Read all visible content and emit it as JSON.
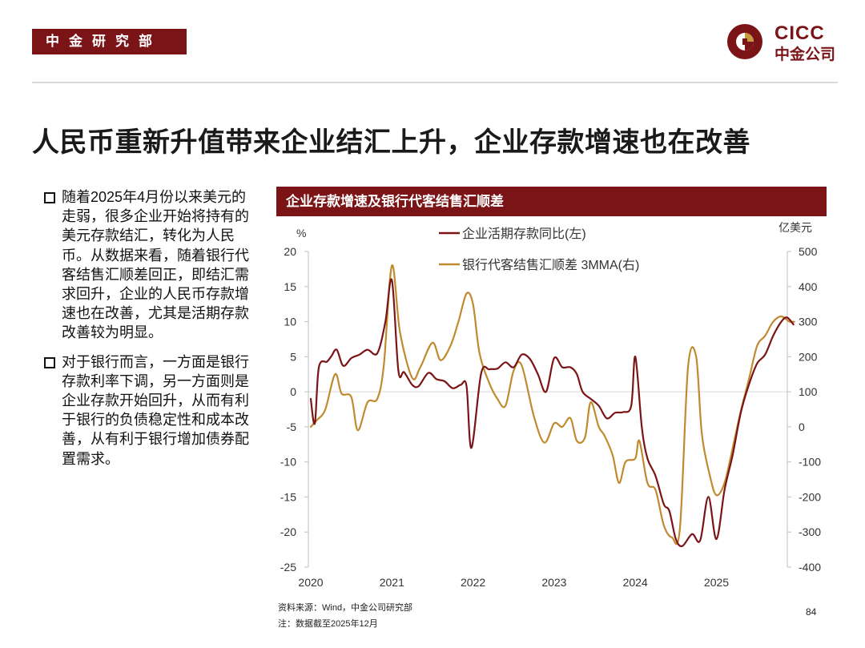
{
  "header": {
    "dept_tag": "中金研究部",
    "logo_en": "CICC",
    "logo_cn": "中金公司"
  },
  "headline": "人民币重新升值带来企业结汇上升，企业存款增速也在改善",
  "bullets": [
    "随着2025年4月份以来美元的走弱，很多企业开始将持有的美元存款结汇，转化为人民币。从数据来看，随着银行代客结售汇顺差回正，即结汇需求回升，企业的人民币存款增速也在改善，尤其是活期存款改善较为明显。",
    "对于银行而言，一方面是银行存款利率下调，另一方面则是企业存款开始回升，从而有利于银行的负债稳定性和成本改善，从有利于银行增加债券配置需求。"
  ],
  "footer": {
    "source": "资料来源：Wind，中金公司研究部",
    "note": "注：数据截至2025年12月",
    "page": "84"
  },
  "colors": {
    "brand": "#7b1416",
    "series_left": "#7b1416",
    "series_right": "#c08a2e",
    "logo_gold": "#c89a3e"
  },
  "chart_data": {
    "type": "line",
    "title": "企业存款增速及银行代客结售汇顺差",
    "x_ticks": [
      "2020",
      "2021",
      "2022",
      "2023",
      "2024",
      "2025"
    ],
    "y_left": {
      "unit": "%",
      "range": [
        -25,
        20
      ],
      "ticks": [
        "20",
        "15",
        "10",
        "5",
        "0",
        "-5",
        "-10",
        "-15",
        "-20",
        "-25"
      ]
    },
    "y_right": {
      "unit": "亿美元",
      "range": [
        -400,
        500
      ],
      "ticks": [
        "500",
        "400",
        "300",
        "200",
        "100",
        "0",
        "-100",
        "-200",
        "-300",
        "-400"
      ]
    },
    "series": [
      {
        "name": "企业活期存款同比(左)",
        "axis": "left",
        "points": [
          [
            2020.0,
            -1.0
          ],
          [
            2020.05,
            -4.5
          ],
          [
            2020.1,
            3.5
          ],
          [
            2020.2,
            4.3
          ],
          [
            2020.25,
            5.0
          ],
          [
            2020.32,
            6.0
          ],
          [
            2020.4,
            3.7
          ],
          [
            2020.5,
            4.8
          ],
          [
            2020.6,
            5.3
          ],
          [
            2020.7,
            6.0
          ],
          [
            2020.82,
            5.5
          ],
          [
            2020.92,
            10.0
          ],
          [
            2021.0,
            15.9
          ],
          [
            2021.08,
            3.0
          ],
          [
            2021.15,
            2.8
          ],
          [
            2021.25,
            1.0
          ],
          [
            2021.33,
            0.8
          ],
          [
            2021.45,
            2.7
          ],
          [
            2021.55,
            1.8
          ],
          [
            2021.65,
            1.5
          ],
          [
            2021.75,
            0.5
          ],
          [
            2021.85,
            1.0
          ],
          [
            2021.92,
            0.8
          ],
          [
            2021.98,
            -8.0
          ],
          [
            2022.1,
            2.6
          ],
          [
            2022.2,
            3.2
          ],
          [
            2022.3,
            3.3
          ],
          [
            2022.4,
            4.2
          ],
          [
            2022.5,
            3.5
          ],
          [
            2022.6,
            5.3
          ],
          [
            2022.7,
            4.7
          ],
          [
            2022.8,
            2.5
          ],
          [
            2022.9,
            0.0
          ],
          [
            2023.0,
            4.8
          ],
          [
            2023.1,
            3.5
          ],
          [
            2023.2,
            3.5
          ],
          [
            2023.28,
            2.5
          ],
          [
            2023.35,
            0.0
          ],
          [
            2023.45,
            -1.0
          ],
          [
            2023.55,
            -2.0
          ],
          [
            2023.65,
            -3.8
          ],
          [
            2023.75,
            -3.0
          ],
          [
            2023.85,
            -2.9
          ],
          [
            2023.95,
            -2.0
          ],
          [
            2024.0,
            5.0
          ],
          [
            2024.08,
            -5.0
          ],
          [
            2024.15,
            -9.5
          ],
          [
            2024.25,
            -12.0
          ],
          [
            2024.35,
            -16.0
          ],
          [
            2024.42,
            -17.0
          ],
          [
            2024.5,
            -21.0
          ],
          [
            2024.58,
            -22.0
          ],
          [
            2024.7,
            -20.3
          ],
          [
            2024.8,
            -21.2
          ],
          [
            2024.9,
            -15.0
          ],
          [
            2025.0,
            -21.0
          ],
          [
            2025.1,
            -14.0
          ],
          [
            2025.2,
            -9.0
          ],
          [
            2025.3,
            -3.0
          ],
          [
            2025.4,
            1.0
          ],
          [
            2025.5,
            4.0
          ],
          [
            2025.6,
            5.3
          ],
          [
            2025.7,
            8.0
          ],
          [
            2025.8,
            10.0
          ],
          [
            2025.87,
            10.6
          ],
          [
            2025.95,
            9.6
          ]
        ]
      },
      {
        "name": "银行代客结售汇顺差 3MMA(右)",
        "axis": "right",
        "points": [
          [
            2020.0,
            0
          ],
          [
            2020.08,
            20
          ],
          [
            2020.18,
            50
          ],
          [
            2020.3,
            150
          ],
          [
            2020.38,
            95
          ],
          [
            2020.5,
            85
          ],
          [
            2020.58,
            -10
          ],
          [
            2020.7,
            70
          ],
          [
            2020.82,
            80
          ],
          [
            2020.9,
            175
          ],
          [
            2021.0,
            460
          ],
          [
            2021.1,
            270
          ],
          [
            2021.25,
            140
          ],
          [
            2021.35,
            170
          ],
          [
            2021.5,
            240
          ],
          [
            2021.6,
            190
          ],
          [
            2021.72,
            230
          ],
          [
            2021.82,
            300
          ],
          [
            2021.92,
            380
          ],
          [
            2022.0,
            350
          ],
          [
            2022.08,
            210
          ],
          [
            2022.2,
            125
          ],
          [
            2022.3,
            80
          ],
          [
            2022.4,
            60
          ],
          [
            2022.5,
            160
          ],
          [
            2022.6,
            175
          ],
          [
            2022.75,
            30
          ],
          [
            2022.88,
            -45
          ],
          [
            2023.0,
            10
          ],
          [
            2023.1,
            0
          ],
          [
            2023.2,
            25
          ],
          [
            2023.28,
            -40
          ],
          [
            2023.38,
            -30
          ],
          [
            2023.45,
            70
          ],
          [
            2023.55,
            0
          ],
          [
            2023.62,
            -25
          ],
          [
            2023.72,
            -80
          ],
          [
            2023.8,
            -160
          ],
          [
            2023.88,
            -100
          ],
          [
            2024.0,
            -90
          ],
          [
            2024.05,
            -40
          ],
          [
            2024.15,
            -160
          ],
          [
            2024.25,
            -180
          ],
          [
            2024.35,
            -280
          ],
          [
            2024.45,
            -315
          ],
          [
            2024.55,
            -290
          ],
          [
            2024.65,
            170
          ],
          [
            2024.75,
            200
          ],
          [
            2024.82,
            -20
          ],
          [
            2024.92,
            -140
          ],
          [
            2025.0,
            -195
          ],
          [
            2025.1,
            -160
          ],
          [
            2025.2,
            -60
          ],
          [
            2025.3,
            45
          ],
          [
            2025.4,
            135
          ],
          [
            2025.5,
            230
          ],
          [
            2025.6,
            260
          ],
          [
            2025.7,
            300
          ],
          [
            2025.8,
            315
          ],
          [
            2025.9,
            300
          ],
          [
            2025.96,
            300
          ]
        ]
      }
    ]
  }
}
